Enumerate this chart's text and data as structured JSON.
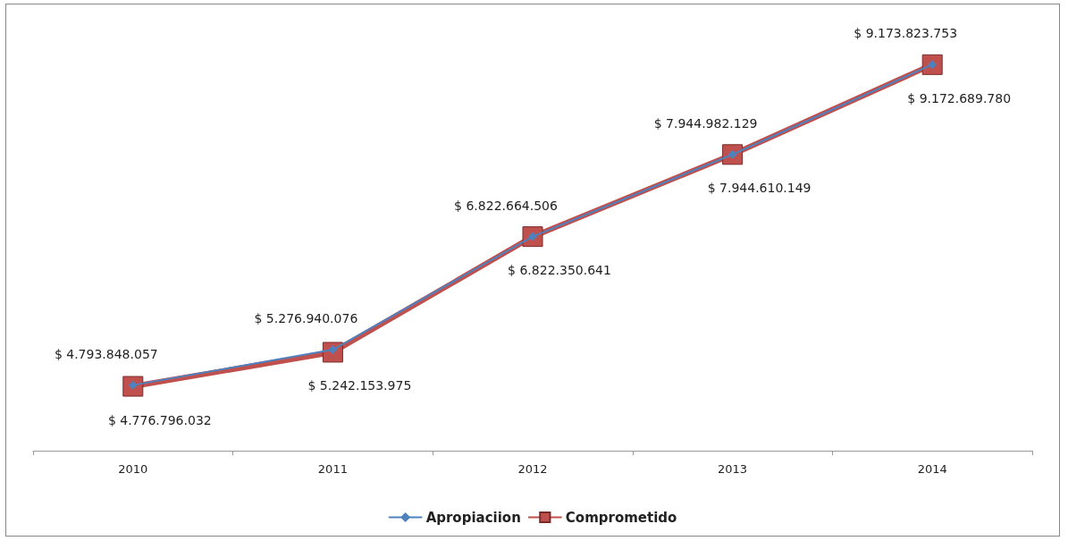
{
  "chart_data": {
    "type": "line",
    "categories": [
      "2010",
      "2011",
      "2012",
      "2013",
      "2014"
    ],
    "series": [
      {
        "name": "Apropiaciion",
        "color": "#4f81bd",
        "marker": "diamond",
        "values": [
          4793848057,
          5276940076,
          6822664506,
          7944982129,
          9173823753
        ],
        "value_labels": [
          "$ 4.793.848.057",
          "$ 5.276.940.076",
          "$ 6.822.664.506",
          "$ 7.944.982.129",
          "$ 9.173.823.753"
        ]
      },
      {
        "name": "Comprometido",
        "color": "#c0504d",
        "marker": "square",
        "values": [
          4776796032,
          5242153975,
          6822350641,
          7944610149,
          9172689780
        ],
        "value_labels": [
          "$ 4.776.796.032",
          "$ 5.242.153.975",
          "$ 6.822.350.641",
          "$ 7.944.610.149",
          "$ 9.172.689.780"
        ]
      }
    ],
    "legend": "bottom",
    "grid": false
  }
}
